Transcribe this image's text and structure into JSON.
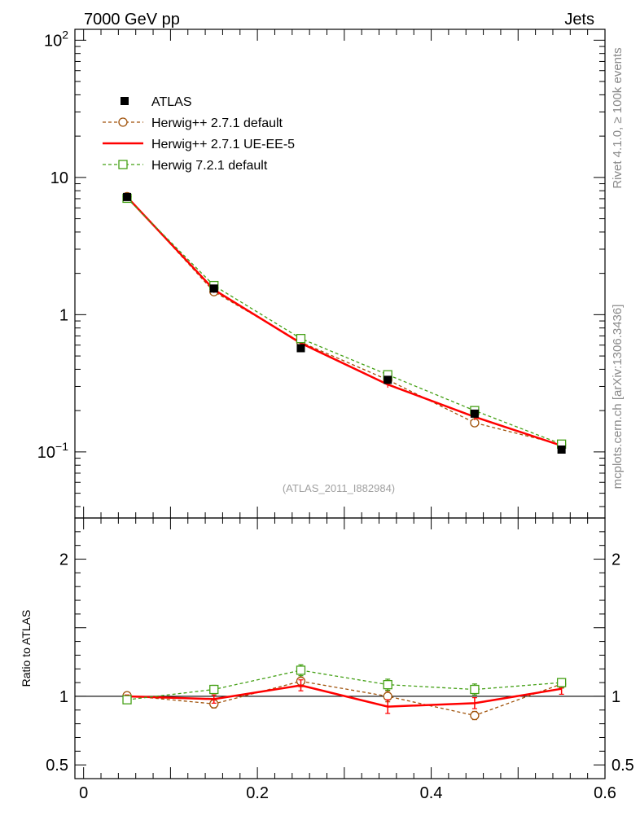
{
  "header": {
    "left": "7000 GeV pp",
    "right": "Jets"
  },
  "side_text": {
    "rivet": "Rivet 4.1.0, ≥ 100k events",
    "mcplots": "mcplots.cern.ch [arXiv:1306.3436]"
  },
  "watermark": "(ATLAS_2011_I882984)",
  "colors": {
    "data": "#000000",
    "herwig_default": "#a0520a",
    "ue_ee5": "#ff0000",
    "herwig7": "#44a015"
  },
  "chart_data": {
    "type": "scatter",
    "x_axis": {
      "range": [
        -0.01,
        0.6
      ],
      "ticks": [
        0,
        0.2,
        0.4,
        0.6
      ],
      "tick_labels": [
        "0",
        "0.2",
        "0.4",
        "0.6"
      ]
    },
    "main": {
      "yscale": "log",
      "ylim": [
        0.033,
        120
      ],
      "ytick_labels": [
        {
          "value": 100,
          "base": "10",
          "exp": "2"
        },
        {
          "value": 10,
          "base": "10",
          "exp": ""
        },
        {
          "value": 1,
          "base": "1",
          "exp": ""
        },
        {
          "value": 0.1,
          "base": "10",
          "exp": "−1"
        }
      ]
    },
    "ratio": {
      "ylabel": "Ratio to ATLAS",
      "ylim": [
        0.4,
        2.3
      ],
      "ytick_labels": [
        {
          "value": 2,
          "label": "2"
        },
        {
          "value": 1,
          "label": "1"
        },
        {
          "value": 0.5,
          "label": "0.5"
        }
      ]
    },
    "x": [
      0.05,
      0.15,
      0.25,
      0.35,
      0.45,
      0.55
    ],
    "data": {
      "name": "ATLAS",
      "values": [
        7.2,
        1.55,
        0.57,
        0.335,
        0.19,
        0.104
      ]
    },
    "series": [
      {
        "name": "Herwig++ 2.7.1 default",
        "style": "dashed",
        "marker": "circle",
        "values": [
          7.25,
          1.47,
          0.63,
          0.335,
          0.163,
          0.113
        ],
        "ratio": [
          1.005,
          0.945,
          1.11,
          1.0,
          0.86,
          1.09
        ],
        "ratio_err": [
          0.01,
          0.03,
          0.04,
          0.04,
          0.03,
          0.03
        ]
      },
      {
        "name": "Herwig++ 2.7.1 UE-EE-5",
        "style": "solid",
        "marker": "none",
        "values": [
          7.2,
          1.52,
          0.62,
          0.31,
          0.18,
          0.111
        ],
        "ratio": [
          1.0,
          0.98,
          1.08,
          0.925,
          0.95,
          1.055
        ],
        "ratio_err": [
          0.01,
          0.03,
          0.04,
          0.05,
          0.04,
          0.04
        ]
      },
      {
        "name": "Herwig 7.2.1 default",
        "style": "dashed",
        "marker": "square",
        "values": [
          7.05,
          1.63,
          0.67,
          0.365,
          0.2,
          0.114
        ],
        "ratio": [
          0.975,
          1.05,
          1.19,
          1.085,
          1.05,
          1.1
        ],
        "ratio_err": [
          0.01,
          0.03,
          0.04,
          0.04,
          0.04,
          0.03
        ]
      }
    ]
  }
}
